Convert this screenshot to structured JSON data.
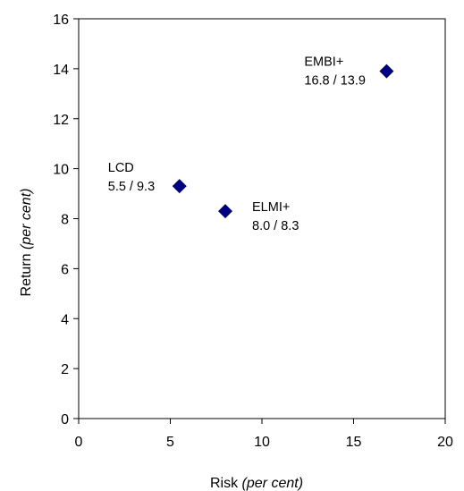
{
  "chart_data": {
    "type": "scatter",
    "title": "",
    "xlabel": {
      "main": "Risk",
      "italic": "(per cent)"
    },
    "ylabel": {
      "main": "Return",
      "italic": "(per cent)"
    },
    "xlim": [
      0,
      20
    ],
    "ylim": [
      0,
      16
    ],
    "xticks": [
      "0",
      "5",
      "10",
      "15",
      "20"
    ],
    "yticks": [
      "0",
      "2",
      "4",
      "6",
      "8",
      "10",
      "12",
      "14",
      "16"
    ],
    "grid": false,
    "legend": "none",
    "marker": "diamond",
    "marker_color": "#000080",
    "points": [
      {
        "name": "LCD",
        "value_text": "5.5 / 9.3",
        "x": 5.5,
        "y": 9.3
      },
      {
        "name": "ELMI+",
        "value_text": "8.0 / 8.3",
        "x": 8.0,
        "y": 8.3
      },
      {
        "name": "EMBI+",
        "value_text": "16.8 / 13.9",
        "x": 16.8,
        "y": 13.9
      }
    ]
  }
}
